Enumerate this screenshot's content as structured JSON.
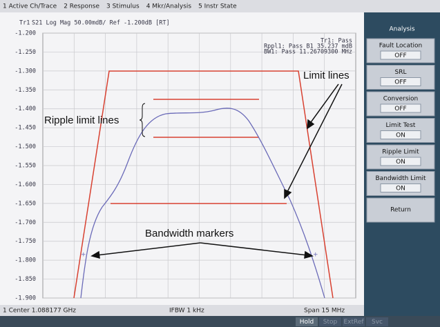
{
  "menu": [
    "1 Active Ch/Trace",
    "2 Response",
    "3 Stimulus",
    "4 Mkr/Analysis",
    "5 Instr State"
  ],
  "chart_data": {
    "type": "line",
    "title": "S21 Log Mag 50.00mdB/ Ref -1.200dB [RT]",
    "trace_label": "Tr1",
    "status_lines": [
      "Tr1: Pass",
      "Rppl1: Pass B1  35.237 mdB",
      "BW1: Pass 11.26709300 MHz"
    ],
    "ylim": [
      -1.9,
      -1.2
    ],
    "yticks": [
      {
        "value": -1.2,
        "label": "-1.200"
      },
      {
        "value": -1.25,
        "label": "-1.250"
      },
      {
        "value": -1.3,
        "label": "-1.300"
      },
      {
        "value": -1.35,
        "label": "-1.350"
      },
      {
        "value": -1.4,
        "label": "-1.400"
      },
      {
        "value": -1.45,
        "label": "-1.450"
      },
      {
        "value": -1.5,
        "label": "-1.500"
      },
      {
        "value": -1.55,
        "label": "-1.550"
      },
      {
        "value": -1.6,
        "label": "-1.600"
      },
      {
        "value": -1.65,
        "label": "-1.650"
      },
      {
        "value": -1.7,
        "label": "-1.700"
      },
      {
        "value": -1.75,
        "label": "-1.750"
      },
      {
        "value": -1.8,
        "label": "-1.800"
      },
      {
        "value": -1.85,
        "label": "-1.850"
      },
      {
        "value": -1.9,
        "label": "-1.900"
      }
    ],
    "grid": true,
    "annotations": [
      "Limit lines",
      "Ripple limit lines",
      "Bandwidth markers"
    ],
    "footer": [
      "1  Center 1.088177 GHz",
      "IFBW 1 kHz",
      "Span 15 MHz"
    ]
  },
  "softkeys": {
    "title": "Analysis",
    "buttons": [
      {
        "label": "Fault Location",
        "state": "OFF"
      },
      {
        "label": "SRL",
        "state": "OFF"
      },
      {
        "label": "Conversion",
        "state": "OFF"
      },
      {
        "label": "Limit Test",
        "state": "ON"
      },
      {
        "label": "Ripple Limit",
        "state": "ON"
      },
      {
        "label": "Bandwidth Limit",
        "state": "ON"
      },
      {
        "label": "Return"
      }
    ]
  },
  "status_bar": [
    "Hold",
    "Stop",
    "ExtRef",
    "Svc"
  ]
}
